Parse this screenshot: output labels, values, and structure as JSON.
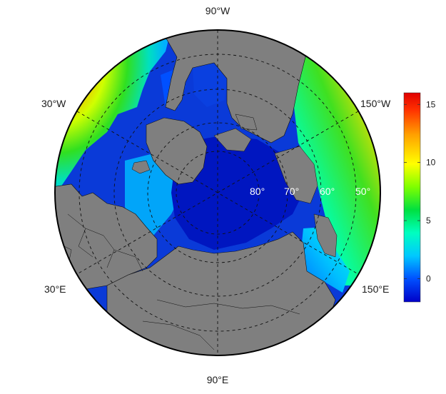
{
  "map": {
    "projection": "polar-stereographic-north",
    "longitude_labels": {
      "top": "90°W",
      "bottom": "90°E",
      "upper_left": "30°W",
      "upper_right": "150°W",
      "lower_left": "30°E",
      "lower_right": "150°E"
    },
    "latitude_labels": [
      "80°",
      "70°",
      "60°",
      "50°"
    ],
    "land_color": "#7f7f7f",
    "graticule_style": "dashed"
  },
  "colorbar": {
    "min": -2,
    "max": 16,
    "ticks": [
      "0",
      "5",
      "10",
      "15"
    ],
    "tick_values": [
      0,
      5,
      10,
      15
    ],
    "colors": [
      "#0000c8",
      "#0050ff",
      "#00c8ff",
      "#00ffc0",
      "#00e040",
      "#7fff00",
      "#ffff00",
      "#ffa000",
      "#ff3000",
      "#e00000"
    ]
  }
}
